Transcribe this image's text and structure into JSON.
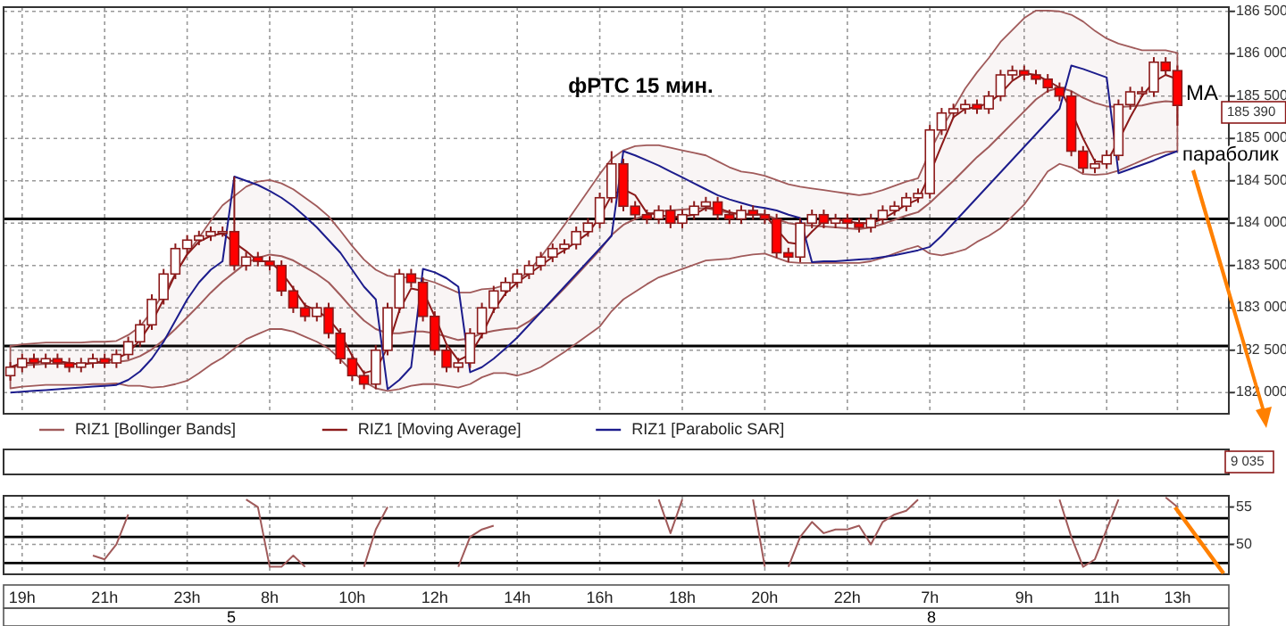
{
  "chart_data": [
    {
      "type": "candlestick",
      "title": "фРТС   15 мин.",
      "categories": [
        null,
        null,
        null,
        null,
        null,
        null,
        null,
        null,
        null,
        null,
        null,
        null,
        null,
        null,
        null,
        null,
        null,
        null,
        null,
        null,
        null,
        null,
        null,
        null,
        null,
        null,
        null,
        null,
        null,
        null,
        null,
        null,
        null,
        null,
        null,
        null,
        null,
        null,
        null,
        null,
        null,
        null,
        null,
        null,
        null,
        null,
        null,
        null,
        null,
        null,
        null,
        null,
        null,
        null,
        null,
        null,
        null,
        null,
        null,
        null,
        null,
        null,
        null,
        null,
        null,
        null,
        null,
        null,
        null,
        null,
        null,
        null,
        null,
        null,
        null,
        null,
        null,
        null,
        null,
        null,
        null,
        null,
        null,
        null,
        null,
        null,
        null,
        null,
        null,
        null,
        null,
        null,
        null,
        null,
        null,
        null,
        null,
        null,
        null,
        null
      ],
      "ohlc": [
        [
          182200,
          182360,
          182140,
          182300
        ],
        [
          182300,
          182460,
          182240,
          182400
        ],
        [
          182400,
          182460,
          182290,
          182350
        ],
        [
          182350,
          182460,
          182290,
          182400
        ],
        [
          182400,
          182460,
          182290,
          182350
        ],
        [
          182350,
          182410,
          182240,
          182300
        ],
        [
          182300,
          182410,
          182240,
          182350
        ],
        [
          182350,
          182460,
          182290,
          182400
        ],
        [
          182400,
          182460,
          182290,
          182350
        ],
        [
          182350,
          182510,
          182290,
          182450
        ],
        [
          182450,
          182660,
          182390,
          182600
        ],
        [
          182600,
          182860,
          182540,
          182800
        ],
        [
          182800,
          183160,
          182740,
          183100
        ],
        [
          183100,
          183460,
          183040,
          183400
        ],
        [
          183400,
          183760,
          183340,
          183700
        ],
        [
          183700,
          183860,
          183640,
          183800
        ],
        [
          183800,
          183910,
          183740,
          183850
        ],
        [
          183850,
          183960,
          183790,
          183900
        ],
        [
          183900,
          183960,
          183840,
          183900
        ],
        [
          183900,
          184550,
          183440,
          183500
        ],
        [
          183500,
          183660,
          183440,
          183600
        ],
        [
          183600,
          183660,
          183490,
          183550
        ],
        [
          183550,
          183610,
          183440,
          183500
        ],
        [
          183500,
          183560,
          183140,
          183200
        ],
        [
          183200,
          183260,
          182940,
          183000
        ],
        [
          183000,
          183060,
          182840,
          182900
        ],
        [
          182900,
          183060,
          182840,
          183000
        ],
        [
          183000,
          183060,
          182640,
          182700
        ],
        [
          182700,
          182760,
          182340,
          182400
        ],
        [
          182400,
          182460,
          182140,
          182200
        ],
        [
          182200,
          182260,
          182040,
          182100
        ],
        [
          182100,
          182560,
          182040,
          182500
        ],
        [
          182500,
          183060,
          182440,
          183000
        ],
        [
          183000,
          183460,
          182940,
          183400
        ],
        [
          183400,
          183460,
          183240,
          183300
        ],
        [
          183300,
          183360,
          182840,
          182900
        ],
        [
          182900,
          182960,
          182440,
          182500
        ],
        [
          182500,
          182560,
          182240,
          182300
        ],
        [
          182300,
          182410,
          182240,
          182350
        ],
        [
          182350,
          182760,
          182290,
          182700
        ],
        [
          182700,
          183060,
          182640,
          183000
        ],
        [
          183000,
          183260,
          182940,
          183200
        ],
        [
          183200,
          183360,
          183140,
          183300
        ],
        [
          183300,
          183460,
          183240,
          183400
        ],
        [
          183400,
          183560,
          183340,
          183500
        ],
        [
          183500,
          183660,
          183440,
          183600
        ],
        [
          183600,
          183760,
          183540,
          183700
        ],
        [
          183700,
          183810,
          183640,
          183750
        ],
        [
          183750,
          183960,
          183690,
          183900
        ],
        [
          183900,
          184060,
          183840,
          184000
        ],
        [
          184000,
          184360,
          183940,
          184300
        ],
        [
          184300,
          184850,
          184240,
          184700
        ],
        [
          184700,
          184760,
          184140,
          184200
        ],
        [
          184200,
          184260,
          184040,
          184100
        ],
        [
          184100,
          184160,
          183990,
          184050
        ],
        [
          184050,
          184210,
          183990,
          184150
        ],
        [
          184150,
          184210,
          183940,
          184000
        ],
        [
          184000,
          184160,
          183940,
          184100
        ],
        [
          184100,
          184260,
          184040,
          184200
        ],
        [
          184200,
          184310,
          184140,
          184250
        ],
        [
          184250,
          184310,
          184040,
          184100
        ],
        [
          184100,
          184160,
          183990,
          184050
        ],
        [
          184050,
          184210,
          183990,
          184150
        ],
        [
          184150,
          184210,
          184040,
          184100
        ],
        [
          184100,
          184160,
          183990,
          184050
        ],
        [
          184050,
          184110,
          183590,
          183650
        ],
        [
          183650,
          183710,
          183540,
          183600
        ],
        [
          183600,
          184060,
          183540,
          184000
        ],
        [
          184000,
          184160,
          183940,
          184100
        ],
        [
          184100,
          184160,
          183940,
          184000
        ],
        [
          184000,
          184110,
          183940,
          184050
        ],
        [
          184050,
          184110,
          183940,
          184000
        ],
        [
          184000,
          184060,
          183890,
          183950
        ],
        [
          183950,
          184110,
          183890,
          184050
        ],
        [
          184050,
          184210,
          183990,
          184150
        ],
        [
          184150,
          184260,
          184090,
          184200
        ],
        [
          184200,
          184360,
          184140,
          184300
        ],
        [
          184300,
          184410,
          184240,
          184350
        ],
        [
          184350,
          185160,
          184290,
          185100
        ],
        [
          185100,
          185360,
          185040,
          185300
        ],
        [
          185300,
          185410,
          185240,
          185350
        ],
        [
          185350,
          185460,
          185290,
          185400
        ],
        [
          185400,
          185460,
          185290,
          185350
        ],
        [
          185350,
          185560,
          185290,
          185500
        ],
        [
          185500,
          185810,
          185440,
          185750
        ],
        [
          185750,
          185860,
          185690,
          185800
        ],
        [
          185800,
          185860,
          185690,
          185750
        ],
        [
          185750,
          185810,
          185640,
          185700
        ],
        [
          185700,
          185760,
          185540,
          185600
        ],
        [
          185600,
          185660,
          185440,
          185500
        ],
        [
          185500,
          185560,
          184790,
          184850
        ],
        [
          184850,
          184910,
          184590,
          184650
        ],
        [
          184650,
          184760,
          184590,
          184700
        ],
        [
          184700,
          184860,
          184640,
          184800
        ],
        [
          184800,
          185460,
          184740,
          185400
        ],
        [
          185400,
          185610,
          185340,
          185550
        ],
        [
          185550,
          185610,
          185490,
          185550
        ],
        [
          185550,
          185960,
          185490,
          185900
        ],
        [
          185900,
          185960,
          185740,
          185800
        ],
        [
          185800,
          185860,
          185150,
          185390
        ]
      ],
      "series": [
        {
          "name": "RIZ1 [Bollinger Bands]",
          "type": "line",
          "color": "#a05a5a",
          "values": [
            182300,
            182320,
            182330,
            182340,
            182340,
            182340,
            182340,
            182350,
            182350,
            182360,
            182380,
            182430,
            182510,
            182620,
            182750,
            182890,
            183030,
            183180,
            183310,
            183420,
            183530,
            183590,
            183630,
            183610,
            183560,
            183480,
            183400,
            183300,
            183150,
            182990,
            182850,
            182750,
            182700,
            182700,
            182720,
            182720,
            182700,
            182660,
            182620,
            182640,
            182700,
            182730,
            182750,
            182760,
            182840,
            182950,
            183090,
            183230,
            183380,
            183530,
            183680,
            183860,
            183980,
            184050,
            184100,
            184140,
            184150,
            184160,
            184170,
            184180,
            184150,
            184120,
            184110,
            184110,
            184100,
            184050,
            184000,
            183980,
            183970,
            183960,
            183950,
            183940,
            183930,
            183950,
            183990,
            184040,
            184090,
            184130,
            184240,
            184370,
            184500,
            184640,
            184780,
            184900,
            185040,
            185180,
            185320,
            185460,
            185560,
            185600,
            185560,
            185480,
            185420,
            185380,
            185370,
            185380,
            185390,
            185420,
            185440,
            185430
          ],
          "lower": [
            182050,
            182070,
            182080,
            182090,
            182090,
            182090,
            182090,
            182100,
            182100,
            182110,
            182080,
            182080,
            182060,
            182070,
            182100,
            182140,
            182230,
            182330,
            182410,
            182520,
            182630,
            182690,
            182750,
            182750,
            182720,
            182660,
            182600,
            182520,
            182390,
            182250,
            182130,
            182050,
            182020,
            182040,
            182080,
            182100,
            182100,
            182080,
            182060,
            182100,
            182180,
            182230,
            182230,
            182200,
            182240,
            182300,
            182390,
            182480,
            182580,
            182680,
            182780,
            182960,
            183100,
            183190,
            183280,
            183360,
            183410,
            183460,
            183510,
            183560,
            183570,
            183580,
            183610,
            183630,
            183640,
            183590,
            183540,
            183530,
            183530,
            183530,
            183530,
            183530,
            183530,
            183550,
            183590,
            183640,
            183690,
            183730,
            183640,
            183620,
            183650,
            183690,
            183780,
            183850,
            183940,
            184080,
            184220,
            184410,
            184610,
            184700,
            184660,
            184580,
            184570,
            184580,
            184620,
            184680,
            184740,
            184800,
            184840,
            184850
          ],
          "upper": [
            182550,
            182570,
            182580,
            182590,
            182590,
            182590,
            182590,
            182600,
            182600,
            182610,
            182680,
            182780,
            182960,
            183170,
            183400,
            183640,
            183830,
            184030,
            184210,
            184320,
            184430,
            184490,
            184510,
            184470,
            184400,
            184300,
            184200,
            184080,
            183910,
            183730,
            183570,
            183450,
            183380,
            183360,
            183360,
            183340,
            183300,
            183240,
            183180,
            183180,
            183220,
            183230,
            183270,
            183320,
            183440,
            183600,
            183790,
            183980,
            184180,
            184380,
            184580,
            184760,
            184860,
            184910,
            184920,
            184920,
            184890,
            184860,
            184830,
            184800,
            184730,
            184660,
            184610,
            184590,
            184560,
            184510,
            184460,
            184430,
            184410,
            184390,
            184370,
            184350,
            184330,
            184350,
            184390,
            184440,
            184490,
            184530,
            184840,
            185120,
            185350,
            185590,
            185780,
            185950,
            186140,
            186280,
            186420,
            186510,
            186510,
            186500,
            186460,
            186380,
            186270,
            186180,
            186120,
            186080,
            186040,
            186040,
            186040,
            186010
          ]
        },
        {
          "name": "RIZ1 [Moving Average]",
          "type": "line",
          "color": "#8b1a1a",
          "values": [
            182300,
            182350,
            182350,
            182380,
            182370,
            182350,
            182330,
            182350,
            182370,
            182400,
            182470,
            182620,
            182830,
            183100,
            183400,
            183630,
            183780,
            183850,
            183880,
            183770,
            183670,
            183550,
            183550,
            183420,
            183230,
            183030,
            182970,
            182870,
            182700,
            182430,
            182230,
            182270,
            182530,
            182970,
            183230,
            183200,
            182900,
            182570,
            182380,
            182450,
            182680,
            182970,
            183170,
            183300,
            183400,
            183500,
            183600,
            183680,
            183780,
            183880,
            184070,
            184330,
            184400,
            184330,
            184120,
            184100,
            184070,
            184080,
            184100,
            184180,
            184180,
            184130,
            184100,
            184100,
            184100,
            183930,
            183770,
            183750,
            183900,
            184030,
            184050,
            184020,
            184000,
            184000,
            184050,
            184130,
            184220,
            184280,
            184580,
            184920,
            185250,
            185350,
            185370,
            185420,
            185530,
            185680,
            185770,
            185750,
            185680,
            185600,
            185320,
            185000,
            184730,
            184720,
            184970,
            185250,
            185500,
            185670,
            185750,
            185700
          ]
        },
        {
          "name": "RIZ1 [Parabolic SAR]",
          "type": "line",
          "color": "#1c1c8c",
          "values": [
            182000,
            182010,
            182020,
            182030,
            182040,
            182050,
            182060,
            182070,
            182080,
            182090,
            182150,
            182250,
            182400,
            182600,
            182850,
            183100,
            183300,
            183450,
            183550,
            184550,
            184500,
            184450,
            184380,
            184300,
            184200,
            184080,
            183950,
            183800,
            183650,
            183450,
            183250,
            183100,
            182040,
            182150,
            182300,
            183460,
            183420,
            183350,
            183250,
            182240,
            182300,
            182400,
            182520,
            182650,
            182800,
            182950,
            183100,
            183250,
            183400,
            183550,
            183700,
            183850,
            184850,
            184800,
            184740,
            184680,
            184610,
            184540,
            184470,
            184400,
            184330,
            184280,
            184240,
            184200,
            184180,
            184150,
            184100,
            184060,
            183540,
            183550,
            183550,
            183560,
            183570,
            183580,
            183600,
            183620,
            183650,
            183680,
            183720,
            183850,
            184000,
            184150,
            184300,
            184450,
            184600,
            184750,
            184900,
            185050,
            185200,
            185350,
            185860,
            185820,
            185770,
            185720,
            184590,
            184640,
            184690,
            184740,
            184800,
            184850
          ]
        }
      ],
      "ylim": [
        181750,
        186550
      ],
      "yticks": [
        {
          "value": 182000,
          "label": "182 000"
        },
        {
          "value": 182500,
          "label": "182 500"
        },
        {
          "value": 183000,
          "label": "183 000"
        },
        {
          "value": 183500,
          "label": "183 500"
        },
        {
          "value": 184000,
          "label": "184 000"
        },
        {
          "value": 184500,
          "label": "184 500"
        },
        {
          "value": 185000,
          "label": "185 000"
        },
        {
          "value": 185500,
          "label": "185 500"
        },
        {
          "value": 186000,
          "label": "186 000"
        },
        {
          "value": 186500,
          "label": "186 500"
        }
      ],
      "ref_lines": [
        {
          "axis": "y",
          "value": 184050,
          "color": "#000000"
        },
        {
          "axis": "y",
          "value": 182550,
          "color": "#000000"
        }
      ],
      "annotations": [
        "МА",
        "параболик",
        "185 390"
      ],
      "grid": true,
      "legend": "bottom",
      "tick_labels": "y"
    },
    {
      "type": "other",
      "annotations": [
        "9 035"
      ]
    },
    {
      "type": "line",
      "categories": [
        null,
        "19h",
        null,
        null,
        null,
        null,
        null,
        null,
        "21h",
        null,
        null,
        null,
        null,
        null,
        null,
        "23h",
        null,
        null,
        null,
        null,
        null,
        null,
        "8h",
        null,
        null,
        null,
        null,
        null,
        null,
        "10h",
        null,
        null,
        null,
        null,
        null,
        null,
        "12h",
        null,
        null,
        null,
        null,
        null,
        null,
        "14h",
        null,
        null,
        null,
        null,
        null,
        null,
        "16h",
        null,
        null,
        null,
        null,
        null,
        null,
        "18h",
        null,
        null,
        null,
        null,
        null,
        null,
        "20h",
        null,
        null,
        null,
        null,
        null,
        null,
        "22h",
        null,
        null,
        null,
        null,
        null,
        null,
        "7h",
        null,
        null,
        null,
        null,
        null,
        null,
        null,
        "9h",
        null,
        null,
        null,
        null,
        null,
        null,
        "11h",
        null,
        null,
        null,
        null,
        null,
        "13h"
      ],
      "series": [
        {
          "color": "#a05a5a",
          "values": [
            null,
            null,
            null,
            null,
            null,
            null,
            null,
            48.5,
            48,
            50,
            54,
            null,
            null,
            null,
            null,
            null,
            null,
            null,
            null,
            null,
            56,
            55,
            47,
            47,
            48.5,
            47,
            null,
            null,
            null,
            null,
            47,
            52,
            55,
            null,
            null,
            null,
            null,
            null,
            47,
            51,
            52,
            52.5,
            null,
            null,
            null,
            null,
            null,
            null,
            null,
            null,
            null,
            null,
            null,
            null,
            null,
            56,
            51.5,
            56,
            null,
            null,
            null,
            null,
            null,
            56,
            47,
            null,
            47,
            51,
            53,
            51.5,
            52,
            52,
            52.5,
            50,
            53,
            54,
            54.5,
            56,
            null,
            null,
            null,
            null,
            null,
            null,
            null,
            null,
            null,
            null,
            null,
            56,
            51,
            47,
            48,
            52,
            56,
            null,
            null,
            null,
            56.3,
            55
          ]
        }
      ],
      "ylim": [
        46,
        56.5
      ],
      "yticks": [
        50,
        55
      ],
      "ref_lines": [
        {
          "axis": "y",
          "value": 53.5,
          "color": "#000000"
        },
        {
          "axis": "y",
          "value": 51,
          "color": "#000000"
        },
        {
          "axis": "y",
          "value": 47.5,
          "color": "#000000"
        }
      ],
      "annotations": [
        "5",
        "8"
      ],
      "grid": true
    }
  ]
}
